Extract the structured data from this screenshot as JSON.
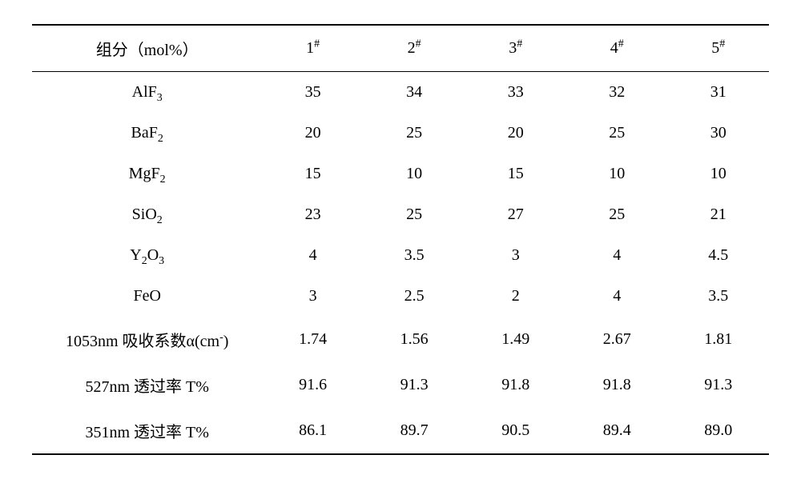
{
  "table": {
    "header_label": "组分（mol%）",
    "columns": [
      "1",
      "2",
      "3",
      "4",
      "5"
    ],
    "rows": [
      {
        "label_html": "AlF<sub>3</sub>",
        "values": [
          "35",
          "34",
          "33",
          "32",
          "31"
        ]
      },
      {
        "label_html": "BaF<sub>2</sub>",
        "values": [
          "20",
          "25",
          "20",
          "25",
          "30"
        ]
      },
      {
        "label_html": "MgF<sub>2</sub>",
        "values": [
          "15",
          "10",
          "15",
          "10",
          "10"
        ]
      },
      {
        "label_html": "SiO<sub>2</sub>",
        "values": [
          "23",
          "25",
          "27",
          "25",
          "21"
        ]
      },
      {
        "label_html": "Y<sub>2</sub>O<sub>3</sub>",
        "values": [
          "4",
          "3.5",
          "3",
          "4",
          "4.5"
        ]
      },
      {
        "label_html": "FeO",
        "values": [
          "3",
          "2.5",
          "2",
          "4",
          "3.5"
        ]
      },
      {
        "label_html": "1053nm 吸收系数α(cm<sup>-</sup>)",
        "values": [
          "1.74",
          "1.56",
          "1.49",
          "2.67",
          "1.81"
        ]
      },
      {
        "label_html": "527nm 透过率 T%",
        "values": [
          "91.6",
          "91.3",
          "91.8",
          "91.8",
          "91.3"
        ]
      },
      {
        "label_html": "351nm 透过率 T%",
        "values": [
          "86.1",
          "89.7",
          "90.5",
          "89.4",
          "89.0"
        ]
      }
    ],
    "colors": {
      "background": "#ffffff",
      "text": "#000000",
      "rule": "#000000"
    },
    "typography": {
      "base_font_size_pt": 15,
      "font_family": "Times New Roman / SimSun serif"
    }
  }
}
